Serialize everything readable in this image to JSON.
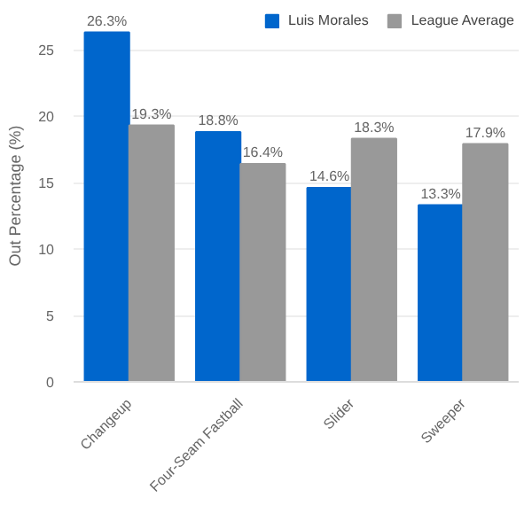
{
  "chart_data": {
    "type": "bar",
    "ylabel": "Out Percentage (%)",
    "categories": [
      "Changeup",
      "Four-Seam Fastball",
      "Slider",
      "Sweeper"
    ],
    "series": [
      {
        "name": "Luis Morales",
        "color": "#0066cc",
        "values": [
          26.3,
          18.8,
          14.6,
          13.3
        ],
        "value_labels": [
          "26.3%",
          "18.8%",
          "14.6%",
          "13.3%"
        ]
      },
      {
        "name": "League Average",
        "color": "#999999",
        "values": [
          19.3,
          16.4,
          18.3,
          17.9
        ],
        "value_labels": [
          "19.3%",
          "16.4%",
          "18.3%",
          "17.9%"
        ]
      }
    ],
    "ylim": [
      0,
      28
    ],
    "yticks": [
      0,
      5,
      10,
      15,
      20,
      25
    ],
    "grid": "y",
    "legend": "top right"
  }
}
